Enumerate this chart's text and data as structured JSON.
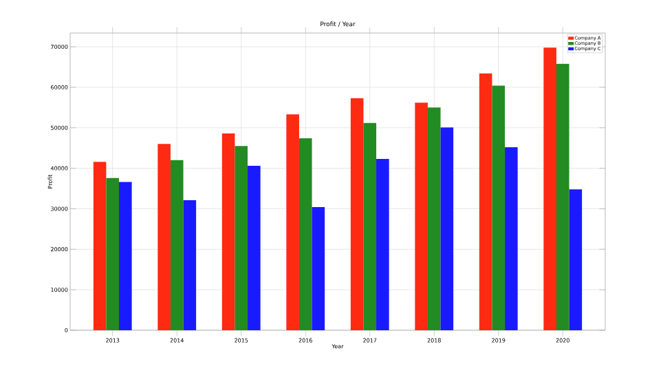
{
  "chart_data": {
    "type": "bar",
    "title": "Profit / Year",
    "xlabel": "Year",
    "ylabel": "Profit",
    "categories": [
      "2013",
      "2014",
      "2015",
      "2016",
      "2017",
      "2018",
      "2019",
      "2020"
    ],
    "series": [
      {
        "name": "Company A",
        "color": "#ff2a12",
        "values": [
          41600,
          46000,
          48600,
          53300,
          57300,
          56200,
          63400,
          69800
        ]
      },
      {
        "name": "Company B",
        "color": "#228b22",
        "values": [
          37600,
          42000,
          45500,
          47400,
          51200,
          55000,
          60400,
          65800
        ]
      },
      {
        "name": "Company C",
        "color": "#1a1aff",
        "values": [
          36600,
          32100,
          40600,
          30400,
          42300,
          50100,
          45200,
          34800
        ]
      }
    ],
    "ylim": [
      0,
      73400
    ],
    "yticks": [
      0,
      10000,
      20000,
      30000,
      40000,
      50000,
      60000,
      70000
    ],
    "grid": true,
    "legend": "top right"
  }
}
